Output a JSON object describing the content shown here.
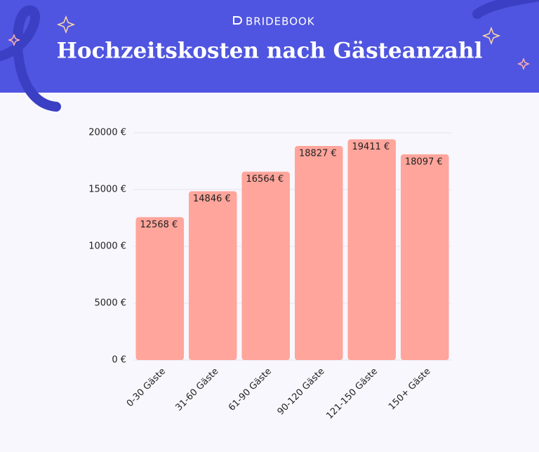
{
  "brand": "BRIDEBOOK",
  "chart_data": {
    "type": "bar",
    "title": "Hochzeitskosten nach Gästeanzahl",
    "categories": [
      "0-30 Gäste",
      "31-60 Gäste",
      "61-90 Gäste",
      "90-120 Gäste",
      "121-150 Gäste",
      "150+ Gäste"
    ],
    "values": [
      12568,
      14846,
      16564,
      18827,
      19411,
      18097
    ],
    "value_labels": [
      "12568 €",
      "14846 €",
      "16564 €",
      "18827 €",
      "19411 €",
      "18097 €"
    ],
    "color": "#ffa59b",
    "ylim": [
      0,
      20000
    ],
    "yticks": [
      {
        "value": 0,
        "label": "0 €"
      },
      {
        "value": 5000,
        "label": "5000 €"
      },
      {
        "value": 10000,
        "label": "10000 €"
      },
      {
        "value": 15000,
        "label": "15000 €"
      },
      {
        "value": 20000,
        "label": "20000 €"
      }
    ],
    "grid": true
  }
}
